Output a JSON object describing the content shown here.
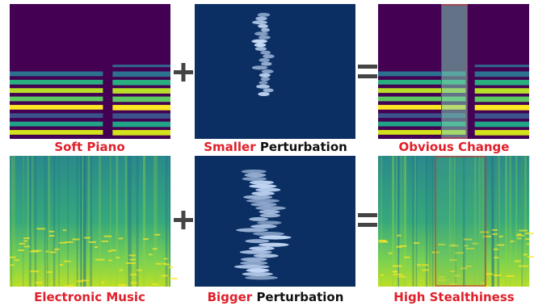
{
  "rows": [
    {
      "input": "Soft Piano",
      "perturbation": {
        "highlight": "Smaller",
        "rest": "Perturbation"
      },
      "result": "Obvious Change"
    },
    {
      "input": "Electronic Music",
      "perturbation": {
        "highlight": "Bigger",
        "rest": "Perturbation"
      },
      "result": "High Stealthiness"
    }
  ]
}
